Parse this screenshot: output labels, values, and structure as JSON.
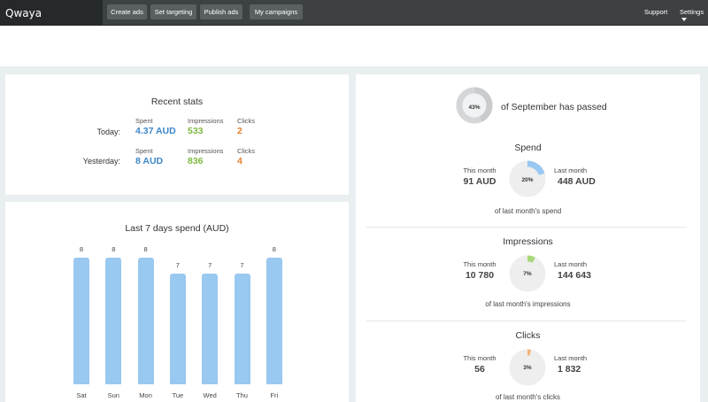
{
  "app": {
    "logo": "Qwaya"
  },
  "nav": {
    "buttons": [
      "Create ads",
      "Set targeting",
      "Publish ads",
      "My campaigns"
    ],
    "support": "Support",
    "settings": "Settings"
  },
  "recent_stats": {
    "title": "Recent stats",
    "rows": [
      {
        "label": "Today:",
        "spent_label": "Spent",
        "spent": "4.37 AUD",
        "impressions_label": "Impressions",
        "impressions": "533",
        "clicks_label": "Clicks",
        "clicks": "2"
      },
      {
        "label": "Yesterday:",
        "spent_label": "Spent",
        "spent": "8 AUD",
        "impressions_label": "Impressions",
        "impressions": "836",
        "clicks_label": "Clicks",
        "clicks": "4"
      }
    ]
  },
  "chart_data": {
    "type": "bar",
    "title": "Last 7 days spend (AUD)",
    "categories": [
      "Sat",
      "Sun",
      "Mon",
      "Tue",
      "Wed",
      "Thu",
      "Fri"
    ],
    "values": [
      8,
      8,
      8,
      7,
      7,
      7,
      8
    ],
    "data_labels": [
      "8",
      "8",
      "8",
      "7",
      "7",
      "7",
      "8"
    ],
    "ylim": [
      0,
      8
    ],
    "color": "#99c8f0"
  },
  "month": {
    "percent": 43,
    "percent_label": "43%",
    "text": "of September has passed"
  },
  "spend": {
    "title": "Spend",
    "this_month_label": "This month",
    "this_month": "91 AUD",
    "last_month_label": "Last month",
    "last_month": "448 AUD",
    "percent": 20,
    "percent_label": "20%",
    "caption": "of last month's spend",
    "color": "#99c8f0"
  },
  "impressions": {
    "title": "Impressions",
    "this_month_label": "This month",
    "this_month": "10 780",
    "last_month_label": "Last month",
    "last_month": "144 643",
    "percent": 7,
    "percent_label": "7%",
    "caption": "of last month's impressions",
    "color": "#a8d77a"
  },
  "clicks": {
    "title": "Clicks",
    "this_month_label": "This month",
    "this_month": "56",
    "last_month_label": "Last month",
    "last_month": "1 832",
    "percent": 3,
    "percent_label": "3%",
    "caption": "of last month's clicks",
    "color": "#f4b377"
  }
}
